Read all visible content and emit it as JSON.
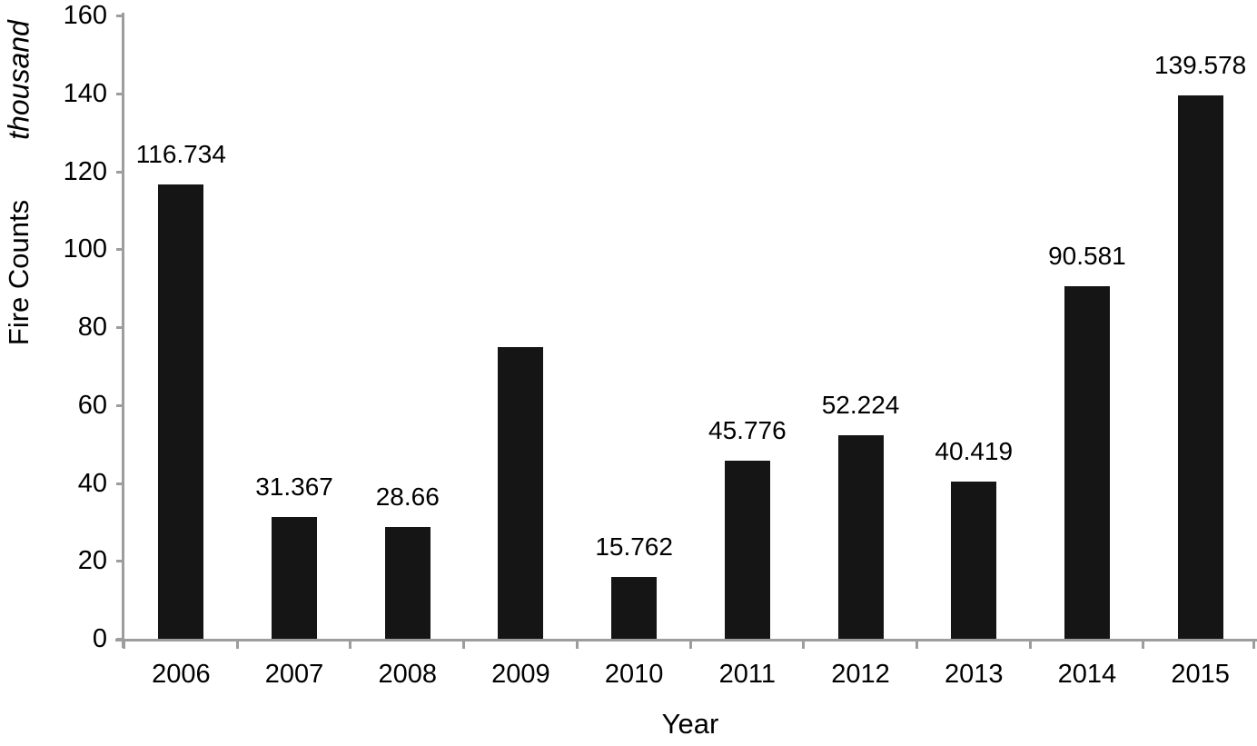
{
  "chart_data": {
    "type": "bar",
    "title": "",
    "categories": [
      "2006",
      "2007",
      "2008",
      "2009",
      "2010",
      "2011",
      "2012",
      "2013",
      "2014",
      "2015"
    ],
    "values": [
      116.734,
      31.367,
      28.66,
      74.9,
      15.762,
      45.776,
      52.224,
      40.419,
      90.581,
      139.578
    ],
    "data_labels": [
      "116.734",
      "31.367",
      "28.66",
      "",
      "15.762",
      "45.776",
      "52.224",
      "40.419",
      "90.581",
      "139.578"
    ],
    "xlabel": "Year",
    "ylabel": "Fire Counts",
    "ylabel_unit": "thousand",
    "ylim": [
      0,
      160
    ],
    "ytick_step": 20,
    "yticks": [
      "0",
      "20",
      "40",
      "60",
      "80",
      "100",
      "120",
      "140",
      "160"
    ],
    "grid": false,
    "legend": false,
    "bar_color": "#151515",
    "axis_color": "#9d9d9d",
    "text_color": "#000000"
  }
}
